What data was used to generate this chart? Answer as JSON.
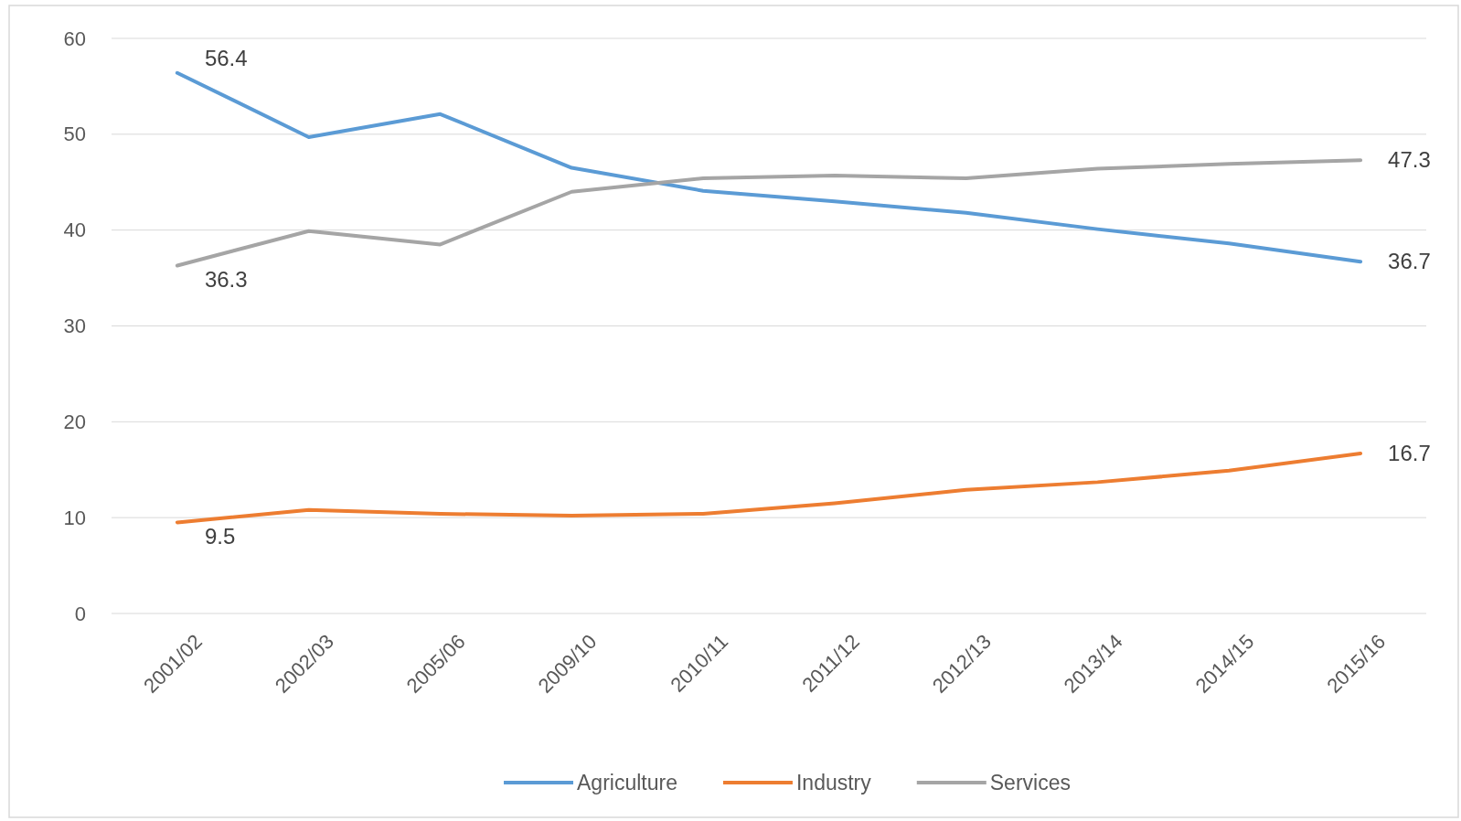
{
  "chart_data": {
    "type": "line",
    "categories": [
      "2001/02",
      "2002/03",
      "2005/06",
      "2009/10",
      "2010/11",
      "2011/12",
      "2012/13",
      "2013/14",
      "2014/15",
      "2015/16"
    ],
    "ylim": [
      0,
      60
    ],
    "yticks": [
      0,
      10,
      20,
      30,
      40,
      50,
      60
    ],
    "grid": "y",
    "legend": "bottom",
    "marker": "none",
    "line_style": "solid",
    "series": [
      {
        "name": "Agriculture",
        "color": "#5b9bd5",
        "values": [
          56.4,
          49.7,
          52.1,
          46.5,
          44.1,
          43.0,
          41.8,
          40.1,
          38.6,
          36.7
        ],
        "value_labels": [
          "56.4",
          null,
          null,
          null,
          null,
          null,
          null,
          null,
          null,
          "36.7"
        ]
      },
      {
        "name": "Industry",
        "color": "#ed7d31",
        "values": [
          9.5,
          10.8,
          10.4,
          10.2,
          10.4,
          11.5,
          12.9,
          13.7,
          14.9,
          16.7
        ],
        "value_labels": [
          "9.5",
          null,
          null,
          null,
          null,
          null,
          null,
          null,
          null,
          "16.7"
        ]
      },
      {
        "name": "Services",
        "color": "#a5a5a5",
        "values": [
          36.3,
          39.9,
          38.5,
          44.0,
          45.4,
          45.7,
          45.4,
          46.4,
          46.9,
          47.3
        ],
        "value_labels": [
          "36.3",
          null,
          null,
          null,
          null,
          null,
          null,
          null,
          null,
          "47.3"
        ]
      }
    ]
  }
}
